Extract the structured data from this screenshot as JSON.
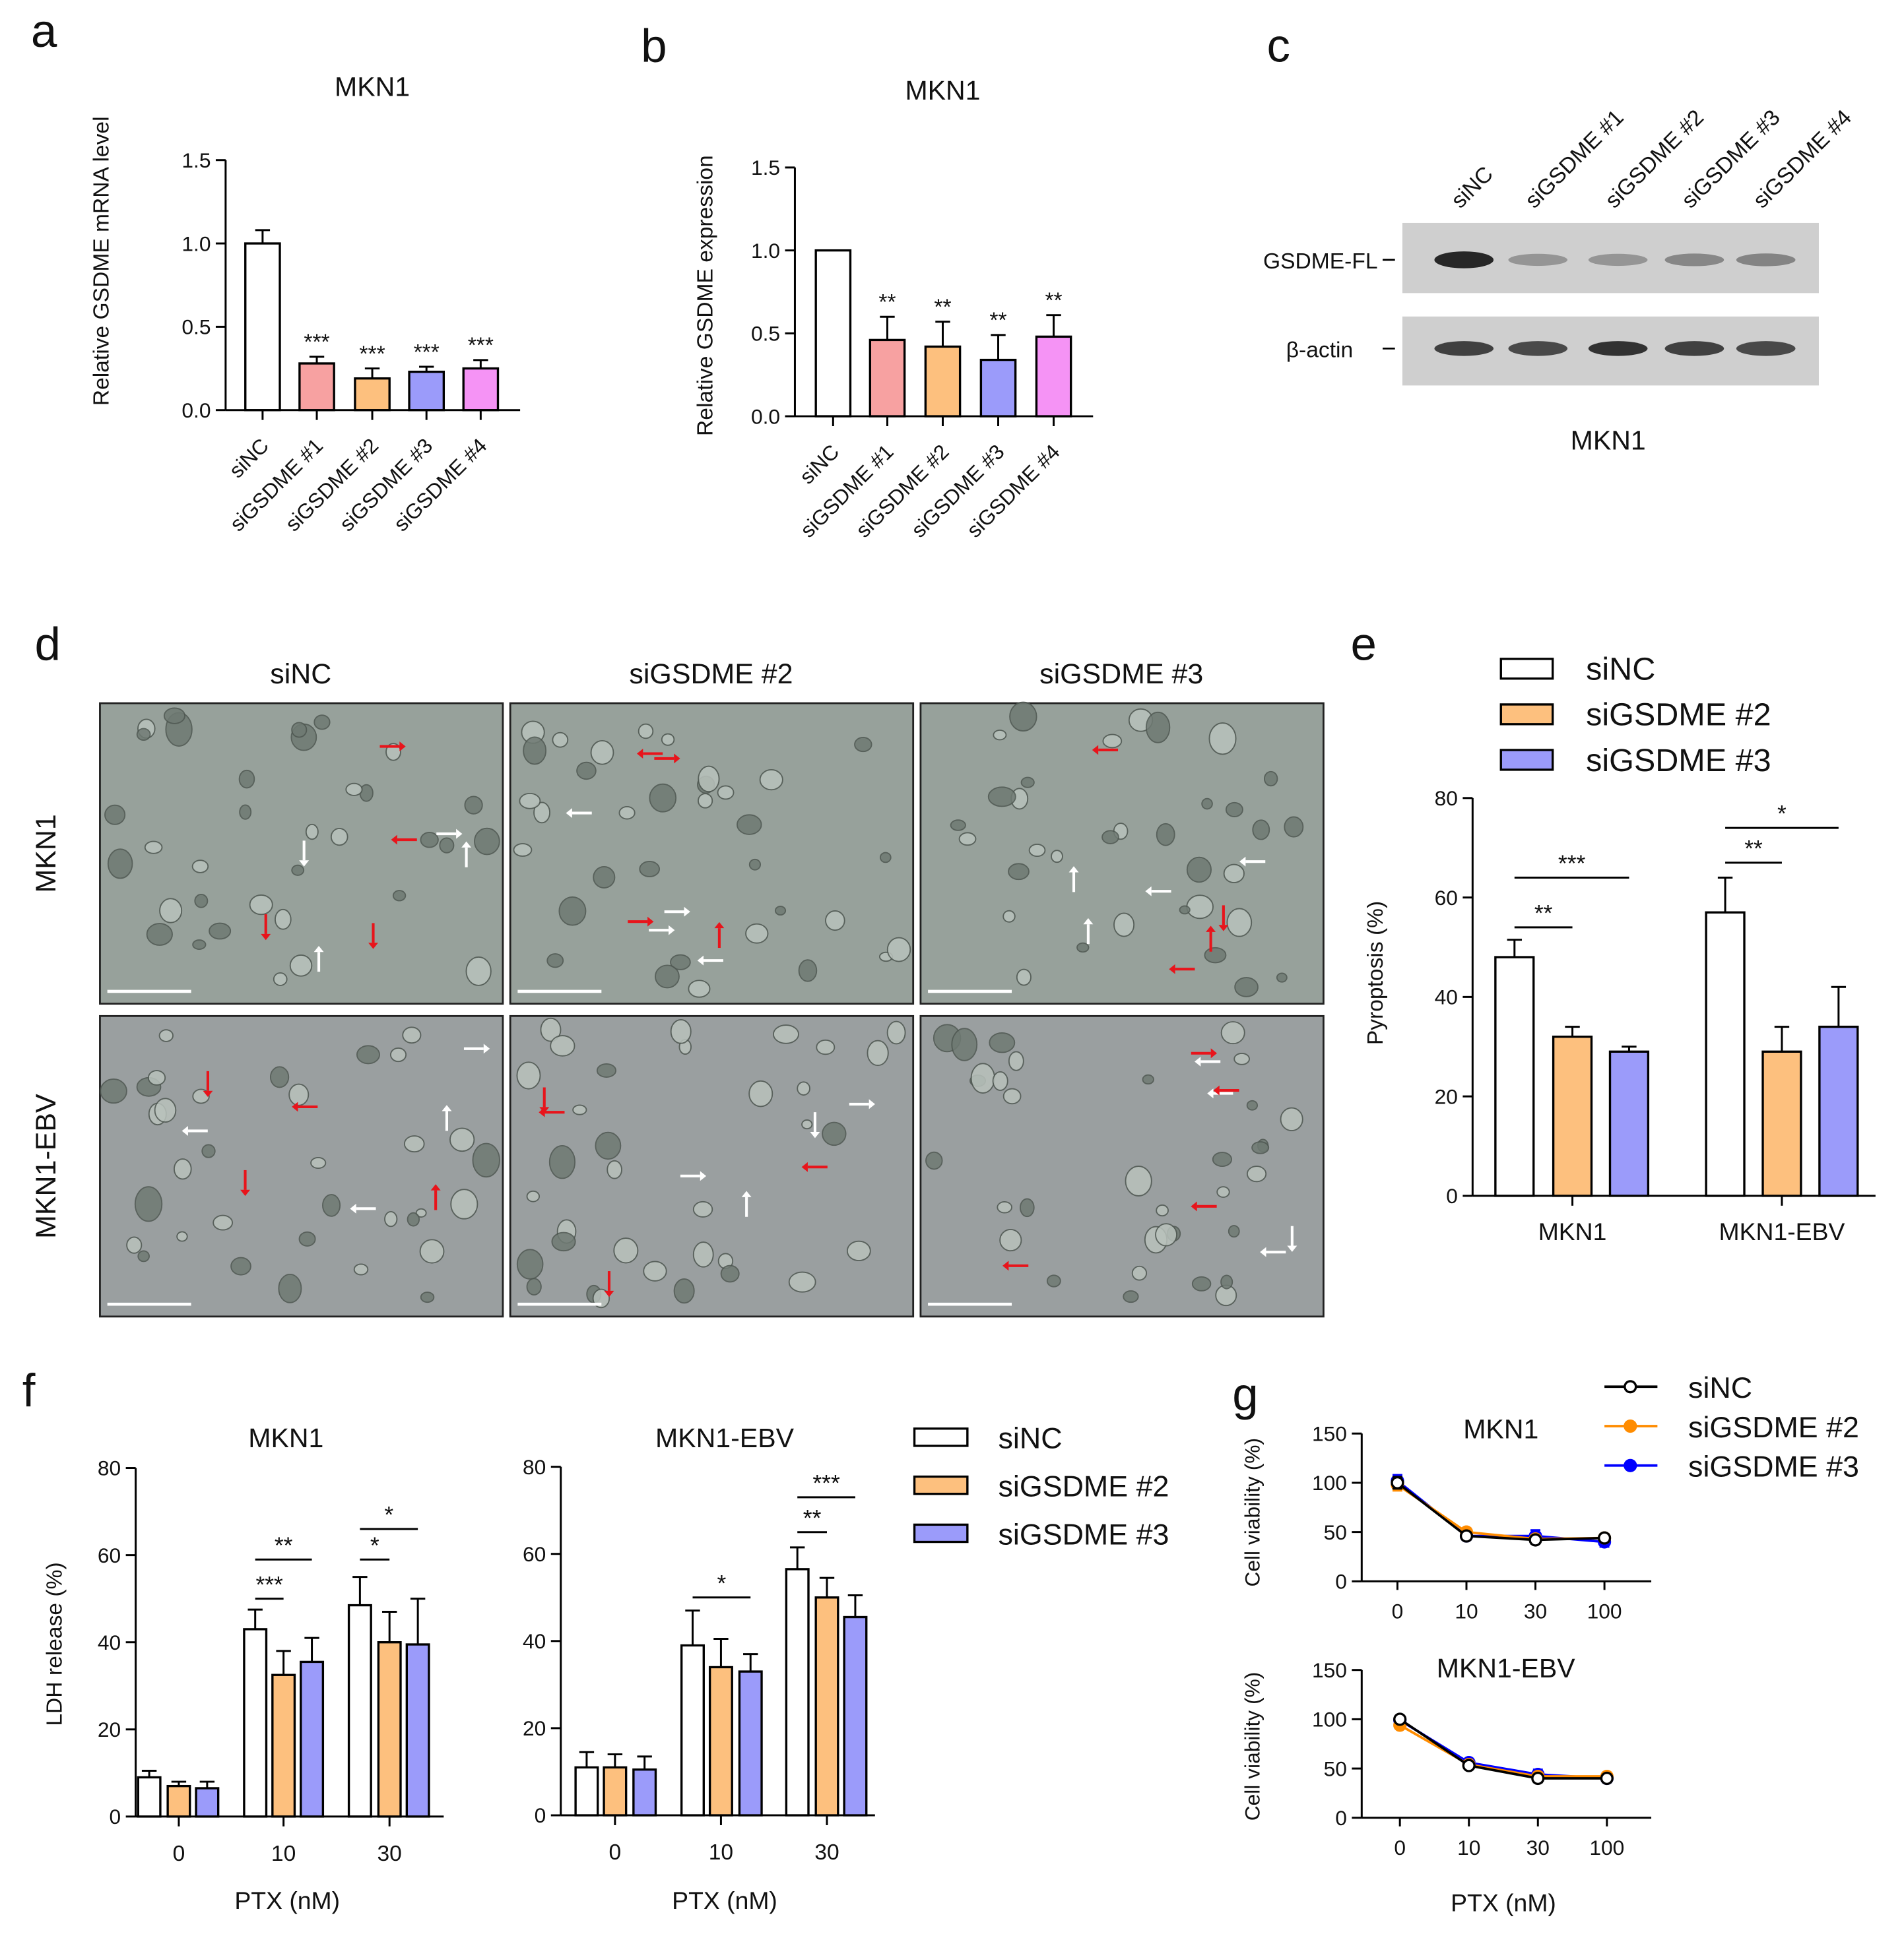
{
  "panel_letters": [
    "a",
    "b",
    "c",
    "d",
    "e",
    "f",
    "g"
  ],
  "colors": {
    "siNC": "#ffffff",
    "siGSDME1": "#F7A1A1",
    "siGSDME2": "#FDC07E",
    "siGSDME3": "#9B9BFA",
    "siGSDME4": "#F593F5",
    "line_siNC": "#000000",
    "line_siGSDME2": "#FF8C00",
    "line_siGSDME3": "#0000FF",
    "red_arrow": "#E8141B",
    "white_arrow": "#ffffff"
  },
  "chart_data": [
    {
      "id": "a",
      "type": "bar",
      "title": "MKN1",
      "ylabel": "Relative GSDME mRNA level",
      "xlabel": "",
      "ylim": [
        0,
        1.5
      ],
      "yticks": [
        "0.0",
        "0.5",
        "1.0",
        "1.5"
      ],
      "ytick_values": [
        0,
        0.5,
        1.0,
        1.5
      ],
      "categories": [
        "siNC",
        "siGSDME #1",
        "siGSDME #2",
        "siGSDME #3",
        "siGSDME #4"
      ],
      "values": [
        1.0,
        0.28,
        0.19,
        0.23,
        0.25
      ],
      "errors": [
        0.08,
        0.04,
        0.06,
        0.03,
        0.05
      ],
      "significance": [
        "",
        "***",
        "***",
        "***",
        "***"
      ],
      "bar_colors": [
        "siNC",
        "siGSDME1",
        "siGSDME2",
        "siGSDME3",
        "siGSDME4"
      ]
    },
    {
      "id": "b",
      "type": "bar",
      "title": "MKN1",
      "ylabel": "Relative GSDME expression",
      "xlabel": "",
      "ylim": [
        0,
        1.5
      ],
      "yticks": [
        "0.0",
        "0.5",
        "1.0",
        "1.5"
      ],
      "ytick_values": [
        0,
        0.5,
        1.0,
        1.5
      ],
      "categories": [
        "siNC",
        "siGSDME #1",
        "siGSDME #2",
        "siGSDME #3",
        "siGSDME #4"
      ],
      "values": [
        1.0,
        0.46,
        0.42,
        0.34,
        0.48
      ],
      "errors": [
        0,
        0.14,
        0.15,
        0.15,
        0.13
      ],
      "significance": [
        "",
        "**",
        "**",
        "**",
        "**"
      ],
      "bar_colors": [
        "siNC",
        "siGSDME1",
        "siGSDME2",
        "siGSDME3",
        "siGSDME4"
      ]
    },
    {
      "id": "e",
      "type": "bar",
      "ylabel": "Pyroptosis (%)",
      "xlabel": "",
      "ylim": [
        0,
        80
      ],
      "yticks": [
        "0",
        "20",
        "40",
        "60",
        "80"
      ],
      "ytick_values": [
        0,
        20,
        40,
        60,
        80
      ],
      "categories": [
        "MKN1",
        "MKN1-EBV"
      ],
      "series": [
        {
          "name": "siNC",
          "color": "siNC",
          "values": [
            48,
            57
          ],
          "errors": [
            3.5,
            7
          ]
        },
        {
          "name": "siGSDME #2",
          "color": "siGSDME2",
          "values": [
            32,
            29
          ],
          "errors": [
            2,
            5
          ]
        },
        {
          "name": "siGSDME #3",
          "color": "siGSDME3",
          "values": [
            29,
            34
          ],
          "errors": [
            1,
            8
          ]
        }
      ],
      "brackets": [
        {
          "group": 0,
          "from": 0,
          "to": 1,
          "label": "**",
          "y": 54
        },
        {
          "group": 0,
          "from": 0,
          "to": 2,
          "label": "***",
          "y": 64
        },
        {
          "group": 1,
          "from": 0,
          "to": 1,
          "label": "**",
          "y": 67
        },
        {
          "group": 1,
          "from": 0,
          "to": 2,
          "label": "*",
          "y": 74
        }
      ],
      "legend": "top"
    },
    {
      "id": "f1",
      "type": "bar",
      "title": "MKN1",
      "ylabel": "LDH release (%)",
      "xlabel": "PTX (nM)",
      "ylim": [
        0,
        80
      ],
      "yticks": [
        "0",
        "20",
        "40",
        "60",
        "80"
      ],
      "ytick_values": [
        0,
        20,
        40,
        60,
        80
      ],
      "categories": [
        "0",
        "10",
        "30"
      ],
      "series": [
        {
          "name": "siNC",
          "color": "siNC",
          "values": [
            9,
            43,
            48.5
          ],
          "errors": [
            1.5,
            4.5,
            6.5
          ]
        },
        {
          "name": "siGSDME #2",
          "color": "siGSDME2",
          "values": [
            7,
            32.5,
            40
          ],
          "errors": [
            1,
            5.5,
            7
          ]
        },
        {
          "name": "siGSDME #3",
          "color": "siGSDME3",
          "values": [
            6.5,
            35.5,
            39.5
          ],
          "errors": [
            1.5,
            5.5,
            10.5
          ]
        }
      ],
      "brackets": [
        {
          "group": 1,
          "from": 0,
          "to": 1,
          "label": "***",
          "y": 50
        },
        {
          "group": 1,
          "from": 0,
          "to": 2,
          "label": "**",
          "y": 59
        },
        {
          "group": 2,
          "from": 0,
          "to": 1,
          "label": "*",
          "y": 59
        },
        {
          "group": 2,
          "from": 0,
          "to": 2,
          "label": "*",
          "y": 66
        }
      ]
    },
    {
      "id": "f2",
      "type": "bar",
      "title": "MKN1-EBV",
      "ylabel": "",
      "xlabel": "PTX (nM)",
      "ylim": [
        0,
        80
      ],
      "yticks": [
        "0",
        "20",
        "40",
        "60",
        "80"
      ],
      "ytick_values": [
        0,
        20,
        40,
        60,
        80
      ],
      "categories": [
        "0",
        "10",
        "30"
      ],
      "series": [
        {
          "name": "siNC",
          "color": "siNC",
          "values": [
            11,
            39,
            56.5
          ],
          "errors": [
            3.5,
            8,
            5
          ]
        },
        {
          "name": "siGSDME #2",
          "color": "siGSDME2",
          "values": [
            11,
            34,
            50
          ],
          "errors": [
            3,
            6.5,
            4.5
          ]
        },
        {
          "name": "siGSDME #3",
          "color": "siGSDME3",
          "values": [
            10.5,
            33,
            45.5
          ],
          "errors": [
            3,
            4,
            5
          ]
        }
      ],
      "brackets": [
        {
          "group": 1,
          "from": 0,
          "to": 2,
          "label": "*",
          "y": 50
        },
        {
          "group": 2,
          "from": 0,
          "to": 1,
          "label": "**",
          "y": 65
        },
        {
          "group": 2,
          "from": 0,
          "to": 2,
          "label": "***",
          "y": 73
        }
      ],
      "legend_entries": [
        "siNC",
        "siGSDME #2",
        "siGSDME #3"
      ],
      "legend": "right"
    },
    {
      "id": "g1",
      "type": "line",
      "title": "MKN1",
      "ylabel": "Cell viability (%)",
      "xlabel": "",
      "ylim": [
        0,
        150
      ],
      "yticks": [
        "0",
        "50",
        "100",
        "150"
      ],
      "ytick_values": [
        0,
        50,
        100,
        150
      ],
      "x": [
        "0",
        "10",
        "30",
        "100"
      ],
      "series": [
        {
          "name": "siNC",
          "color": "line_siNC",
          "values": [
            100,
            46,
            42,
            44
          ],
          "errors": [
            6,
            4,
            4,
            4
          ],
          "marker": "open-circle"
        },
        {
          "name": "siGSDME #2",
          "color": "line_siGSDME2",
          "values": [
            98,
            50,
            43,
            44
          ],
          "errors": [
            6,
            4,
            4,
            4
          ],
          "marker": "filled-circle"
        },
        {
          "name": "siGSDME #3",
          "color": "line_siGSDME3",
          "values": [
            102,
            46,
            46,
            40
          ],
          "errors": [
            6,
            4,
            6,
            5
          ],
          "marker": "filled-circle"
        }
      ],
      "legend": "top-right"
    },
    {
      "id": "g2",
      "type": "line",
      "title": "MKN1-EBV",
      "ylabel": "Cell viability (%)",
      "xlabel": "PTX (nM)",
      "ylim": [
        0,
        150
      ],
      "yticks": [
        "0",
        "50",
        "100",
        "150"
      ],
      "ytick_values": [
        0,
        50,
        100,
        150
      ],
      "x": [
        "0",
        "10",
        "30",
        "100"
      ],
      "series": [
        {
          "name": "siNC",
          "color": "line_siNC",
          "values": [
            100,
            53,
            40,
            40
          ],
          "errors": [
            3,
            3,
            4,
            4
          ],
          "marker": "open-circle"
        },
        {
          "name": "siGSDME #2",
          "color": "line_siGSDME2",
          "values": [
            94,
            54,
            42,
            42
          ],
          "errors": [
            3,
            3,
            4,
            4
          ],
          "marker": "filled-circle"
        },
        {
          "name": "siGSDME #3",
          "color": "line_siGSDME3",
          "values": [
            99,
            56,
            44,
            40
          ],
          "errors": [
            3,
            4,
            5,
            4
          ],
          "marker": "filled-circle"
        }
      ]
    }
  ],
  "western_blot": {
    "panel": "c",
    "title": "MKN1",
    "lanes": [
      "siNC",
      "siGSDME #1",
      "siGSDME #2",
      "siGSDME #3",
      "siGSDME #4"
    ],
    "rows": [
      {
        "label": "GSDME-FL",
        "band_intensity": [
          0.95,
          0.3,
          0.3,
          0.38,
          0.4
        ]
      },
      {
        "label": "β-actin",
        "band_intensity": [
          0.8,
          0.75,
          0.88,
          0.8,
          0.75
        ]
      }
    ]
  },
  "micrographs": {
    "panel": "d",
    "columns": [
      "siNC",
      "siGSDME #2",
      "siGSDME #3"
    ],
    "rows": [
      "MKN1",
      "MKN1-EBV"
    ]
  },
  "legend_e": [
    "siNC",
    "siGSDME #2",
    "siGSDME #3"
  ]
}
